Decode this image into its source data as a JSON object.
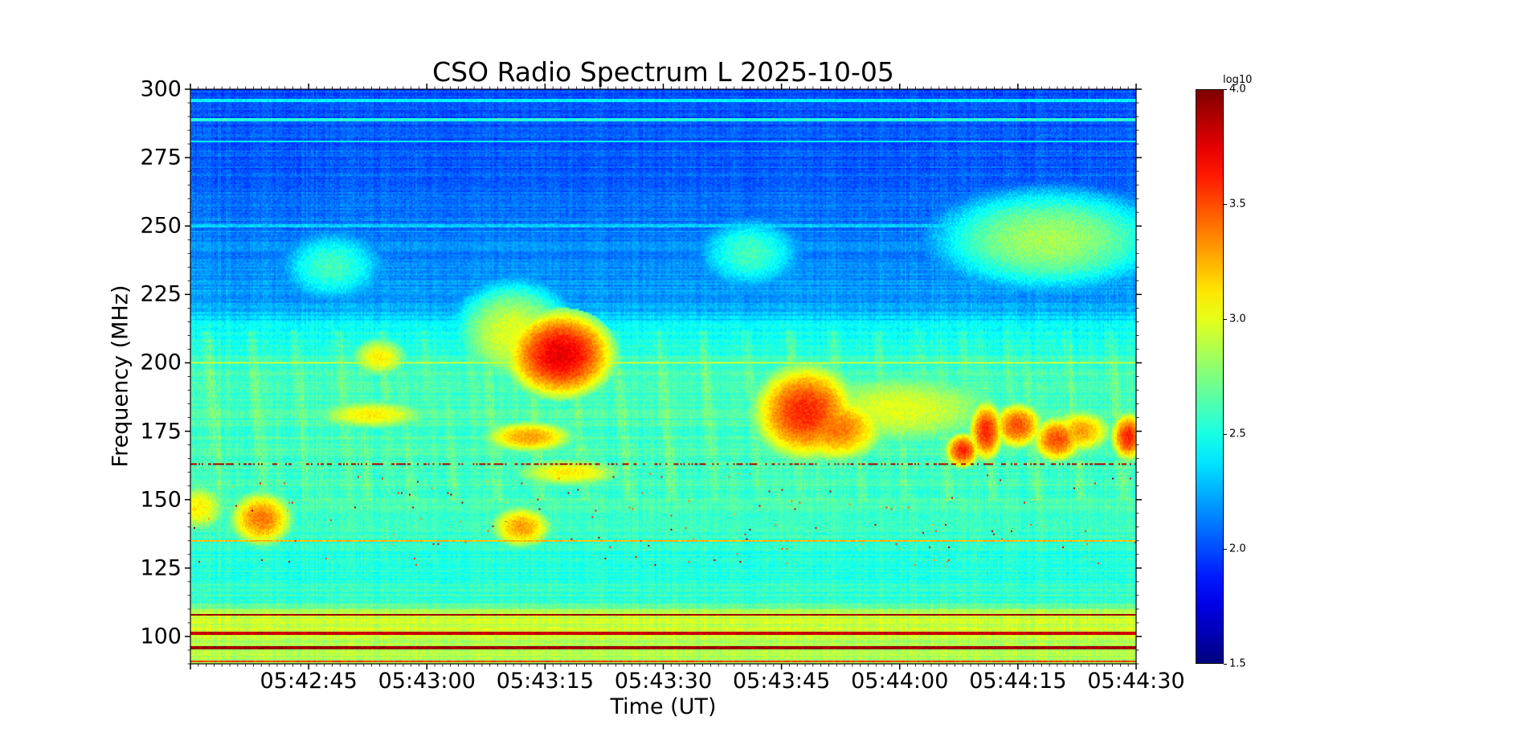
{
  "chart_data": {
    "type": "heatmap",
    "title": "CSO Radio Spectrum L 2025-10-05",
    "xlabel": "Time (UT)",
    "ylabel": "Frequency (MHz)",
    "xlim": [
      "05:42:30",
      "05:44:30"
    ],
    "ylim": [
      90,
      300
    ],
    "x_ticks": [
      "05:42:45",
      "05:43:00",
      "05:43:15",
      "05:43:30",
      "05:43:45",
      "05:44:00",
      "05:44:15",
      "05:44:30"
    ],
    "y_ticks": [
      100,
      125,
      150,
      175,
      200,
      225,
      250,
      275,
      300
    ],
    "colormap": "jet",
    "colorbar": {
      "label": "log10",
      "range": [
        1.5,
        4.0
      ],
      "ticks": [
        "1.5",
        "2.0",
        "2.5",
        "3.0",
        "3.5",
        "4.0"
      ]
    },
    "background_profile": [
      {
        "freq": 300,
        "value": 2.0
      },
      {
        "freq": 265,
        "value": 2.05
      },
      {
        "freq": 240,
        "value": 2.15
      },
      {
        "freq": 222,
        "value": 2.2
      },
      {
        "freq": 212,
        "value": 2.45
      },
      {
        "freq": 195,
        "value": 2.6
      },
      {
        "freq": 150,
        "value": 2.6
      },
      {
        "freq": 125,
        "value": 2.5
      },
      {
        "freq": 112,
        "value": 2.6
      },
      {
        "freq": 108,
        "value": 2.95
      },
      {
        "freq": 90,
        "value": 2.85
      }
    ],
    "features": [
      {
        "t": 47,
        "f": 203,
        "value": 3.75,
        "dt": 3,
        "df": 7
      },
      {
        "t": 41,
        "f": 210,
        "value": 3.0,
        "dt": 4,
        "df": 10
      },
      {
        "t": 78,
        "f": 182,
        "value": 3.6,
        "dt": 3,
        "df": 8
      },
      {
        "t": 82,
        "f": 176,
        "value": 3.4,
        "dt": 3,
        "df": 6
      },
      {
        "t": 109,
        "f": 245,
        "value": 2.85,
        "dt": 8,
        "df": 10
      },
      {
        "t": 9,
        "f": 143,
        "value": 3.4,
        "dt": 2,
        "df": 5
      },
      {
        "t": 1,
        "f": 147,
        "value": 3.1,
        "dt": 2,
        "df": 5
      },
      {
        "t": 24,
        "f": 202,
        "value": 3.1,
        "dt": 2,
        "df": 4
      },
      {
        "t": 23,
        "f": 181,
        "value": 3.1,
        "dt": 4,
        "df": 3
      },
      {
        "t": 43,
        "f": 173,
        "value": 3.3,
        "dt": 3,
        "df": 3
      },
      {
        "t": 42,
        "f": 140,
        "value": 3.3,
        "dt": 2,
        "df": 4
      },
      {
        "t": 48,
        "f": 160,
        "value": 3.1,
        "dt": 4,
        "df": 3
      },
      {
        "t": 98,
        "f": 168,
        "value": 3.6,
        "dt": 1,
        "df": 3
      },
      {
        "t": 101,
        "f": 175,
        "value": 3.6,
        "dt": 1,
        "df": 5
      },
      {
        "t": 105,
        "f": 177,
        "value": 3.5,
        "dt": 1.5,
        "df": 4
      },
      {
        "t": 110,
        "f": 172,
        "value": 3.5,
        "dt": 1.5,
        "df": 4
      },
      {
        "t": 113,
        "f": 175,
        "value": 3.3,
        "dt": 2,
        "df": 4
      },
      {
        "t": 119,
        "f": 173,
        "value": 3.6,
        "dt": 1,
        "df": 4
      },
      {
        "t": 71,
        "f": 240,
        "value": 2.6,
        "dt": 4,
        "df": 8
      },
      {
        "t": 18,
        "f": 235,
        "value": 2.6,
        "dt": 4,
        "df": 8
      },
      {
        "t": 90,
        "f": 183,
        "value": 3.0,
        "dt": 8,
        "df": 8
      }
    ],
    "horizontal_lines": [
      {
        "f": 296,
        "value": 2.5
      },
      {
        "f": 289,
        "value": 2.6
      },
      {
        "f": 281,
        "value": 2.5
      },
      {
        "f": 250,
        "value": 2.4
      },
      {
        "f": 200,
        "value": 3.0
      },
      {
        "f": 163,
        "value": 3.9
      },
      {
        "f": 135,
        "value": 3.3
      },
      {
        "f": 121,
        "value": 2.3
      },
      {
        "f": 108,
        "value": 4.0
      },
      {
        "f": 101,
        "value": 3.9
      },
      {
        "f": 96,
        "value": 4.0
      },
      {
        "f": 91,
        "value": 3.6
      }
    ]
  }
}
